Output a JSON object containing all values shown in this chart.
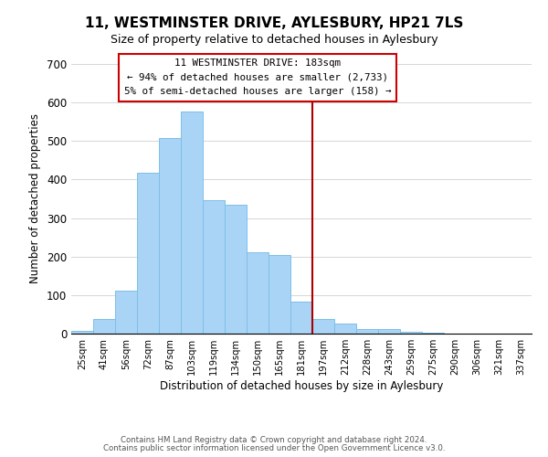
{
  "title": "11, WESTMINSTER DRIVE, AYLESBURY, HP21 7LS",
  "subtitle": "Size of property relative to detached houses in Aylesbury",
  "xlabel": "Distribution of detached houses by size in Aylesbury",
  "ylabel": "Number of detached properties",
  "categories": [
    "25sqm",
    "41sqm",
    "56sqm",
    "72sqm",
    "87sqm",
    "103sqm",
    "119sqm",
    "134sqm",
    "150sqm",
    "165sqm",
    "181sqm",
    "197sqm",
    "212sqm",
    "228sqm",
    "243sqm",
    "259sqm",
    "275sqm",
    "290sqm",
    "306sqm",
    "321sqm",
    "337sqm"
  ],
  "values": [
    8,
    37,
    112,
    418,
    508,
    577,
    346,
    335,
    212,
    203,
    83,
    37,
    26,
    13,
    13,
    4,
    2,
    1,
    1,
    1,
    1
  ],
  "bar_color": "#aad4f5",
  "bar_edge_color": "#7dbfe8",
  "property_value_index": 10,
  "property_label": "11 WESTMINSTER DRIVE: 183sqm",
  "annotation_line1": "← 94% of detached houses are smaller (2,733)",
  "annotation_line2": "5% of semi-detached houses are larger (158) →",
  "vline_color": "#aa0000",
  "annotation_box_edge": "#cc0000",
  "ylim": [
    0,
    700
  ],
  "yticks": [
    0,
    100,
    200,
    300,
    400,
    500,
    600,
    700
  ],
  "footer_line1": "Contains HM Land Registry data © Crown copyright and database right 2024.",
  "footer_line2": "Contains public sector information licensed under the Open Government Licence v3.0.",
  "bg_color": "#ffffff",
  "grid_color": "#d0d0d0"
}
